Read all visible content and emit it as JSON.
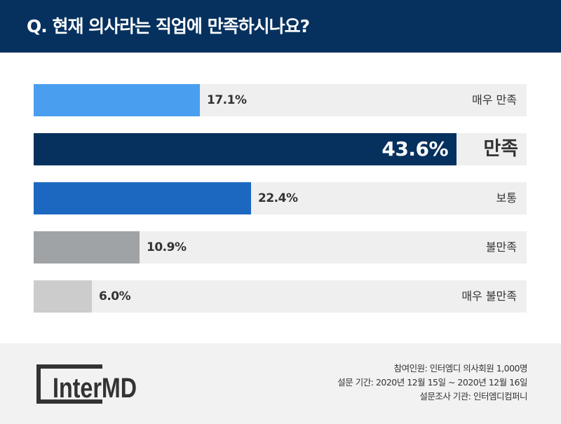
{
  "header": {
    "title": "Q. 현재 의사라는 직업에 만족하시나요?"
  },
  "chart_data": {
    "type": "bar",
    "orientation": "horizontal",
    "title": "Q. 현재 의사라는 직업에 만족하시나요?",
    "categories": [
      "매우 만족",
      "만족",
      "보통",
      "불만족",
      "매우 불만족"
    ],
    "values": [
      17.1,
      43.6,
      22.4,
      10.9,
      6.0
    ],
    "value_labels": [
      "17.1%",
      "43.6%",
      "22.4%",
      "10.9%",
      "6.0%"
    ],
    "colors": [
      "#4a9ef0",
      "#06315e",
      "#1c68c0",
      "#a0a3a5",
      "#cccccc"
    ],
    "highlight_index": 1,
    "xlim": [
      0,
      50.8
    ]
  },
  "footer": {
    "logo_text": "InterMD",
    "notes": [
      "참여인원: 인터엠디 의사회원 1,000명",
      "설문 기간: 2020년 12월 15일 ~ 2020년 12월 16일",
      "설문조사 기관: 인터엠디컴퍼니"
    ]
  }
}
